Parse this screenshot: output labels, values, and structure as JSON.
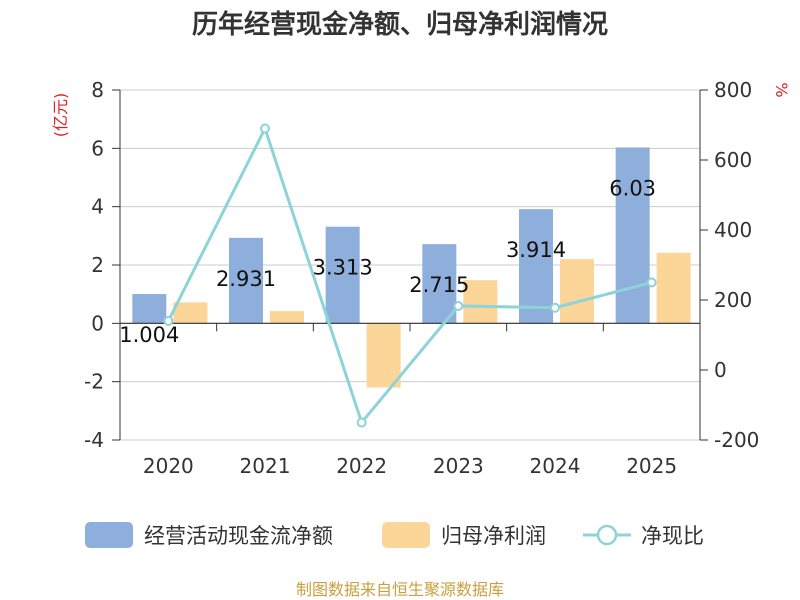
{
  "chart_data": {
    "type": "bar",
    "title": "历年经营现金净额、归母净利润情况",
    "categories": [
      "2020",
      "2021",
      "2022",
      "2023",
      "2024",
      "2025"
    ],
    "series": [
      {
        "name": "经营活动现金流净额",
        "type": "bar",
        "axis": "left",
        "color": "#8eaedc",
        "values": [
          1.004,
          2.931,
          3.313,
          2.715,
          3.914,
          6.03
        ],
        "labels": [
          "1.004",
          "2.931",
          "3.313",
          "2.715",
          "3.914",
          "6.03"
        ]
      },
      {
        "name": "归母净利润",
        "type": "bar",
        "axis": "left",
        "color": "#fcd699",
        "values": [
          0.72,
          0.42,
          -2.2,
          1.48,
          2.2,
          2.42
        ]
      },
      {
        "name": "净现比",
        "type": "line",
        "axis": "right",
        "color": "#8dd3d8",
        "values": [
          140,
          690,
          -150,
          183,
          178,
          250
        ]
      }
    ],
    "y_left": {
      "unit": "(亿元)",
      "ylim": [
        -4,
        8
      ],
      "ticks": [
        -4,
        -2,
        0,
        2,
        4,
        6,
        8
      ],
      "tick_labels": [
        "-4",
        "-2",
        "0",
        "2",
        "4",
        "6",
        "8"
      ]
    },
    "y_right": {
      "unit": "%",
      "ylim": [
        -200,
        800
      ],
      "ticks": [
        -200,
        0,
        200,
        400,
        600,
        800
      ],
      "tick_labels": [
        "-200",
        "0",
        "200",
        "400",
        "600",
        "800"
      ]
    },
    "grid": true,
    "legend": "bottom",
    "source": "制图数据来自恒生聚源数据库"
  }
}
